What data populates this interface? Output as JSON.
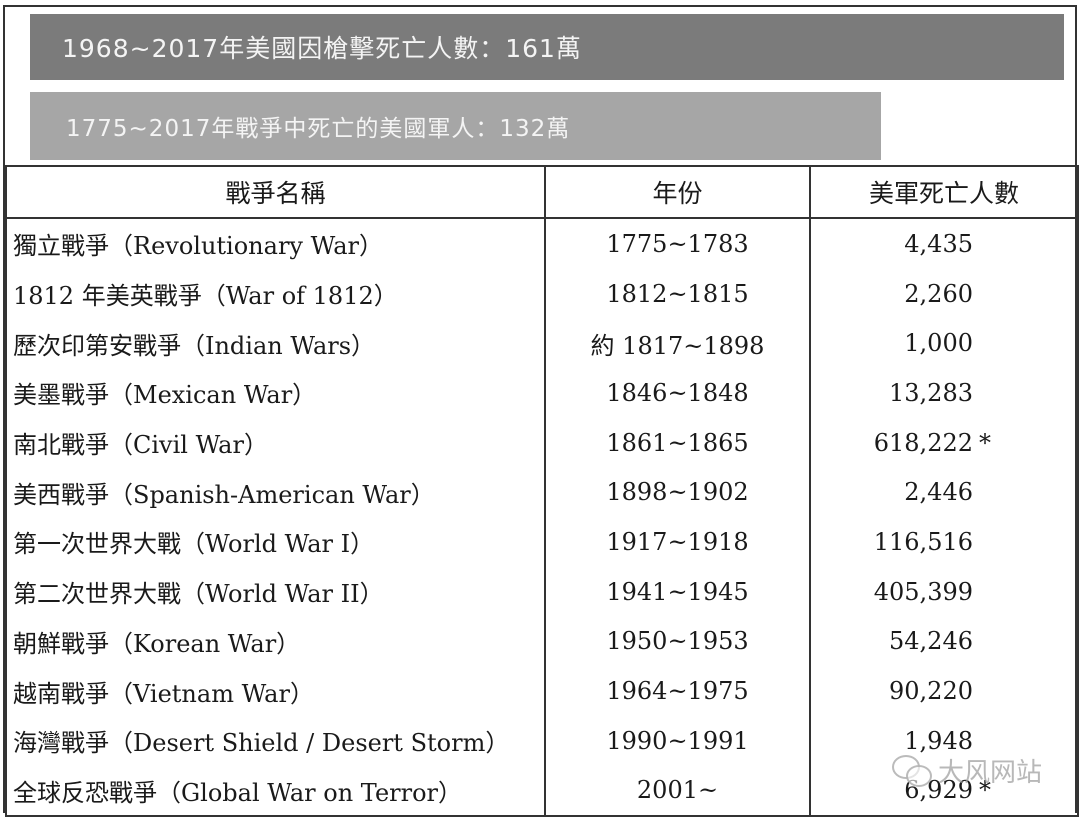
{
  "banners": {
    "gun_deaths": "1968~2017年美國因槍擊死亡人數：161萬",
    "war_deaths": "1775~2017年戰爭中死亡的美國軍人：132萬"
  },
  "table": {
    "headers": [
      "戰爭名稱",
      "年份",
      "美軍死亡人數"
    ],
    "rows": [
      {
        "name": "獨立戰爭（Revolutionary War）",
        "years": "1775~1783",
        "deaths": "4,435",
        "note": ""
      },
      {
        "name": "1812 年美英戰爭（War of 1812）",
        "years": "1812~1815",
        "deaths": "2,260",
        "note": ""
      },
      {
        "name": "歷次印第安戰爭（Indian Wars）",
        "years": "約 1817~1898",
        "deaths": "1,000",
        "note": ""
      },
      {
        "name": "美墨戰爭（Mexican War）",
        "years": "1846~1848",
        "deaths": "13,283",
        "note": ""
      },
      {
        "name": "南北戰爭（Civil War）",
        "years": "1861~1865",
        "deaths": "618,222",
        "note": "*"
      },
      {
        "name": "美西戰爭（Spanish-American War）",
        "years": "1898~1902",
        "deaths": "2,446",
        "note": ""
      },
      {
        "name": "第一次世界大戰（World War I）",
        "years": "1917~1918",
        "deaths": "116,516",
        "note": ""
      },
      {
        "name": "第二次世界大戰（World War II）",
        "years": "1941~1945",
        "deaths": "405,399",
        "note": ""
      },
      {
        "name": "朝鮮戰爭（Korean War）",
        "years": "1950~1953",
        "deaths": "54,246",
        "note": ""
      },
      {
        "name": "越南戰爭（Vietnam War）",
        "years": "1964~1975",
        "deaths": "90,220",
        "note": ""
      },
      {
        "name": "海灣戰爭（Desert Shield / Desert Storm）",
        "years": "1990~1991",
        "deaths": "1,948",
        "note": ""
      },
      {
        "name": "全球反恐戰爭（Global War on Terror）",
        "years": "2001~",
        "deaths": "6,929",
        "note": "*"
      }
    ]
  },
  "watermark": {
    "text": "大风网站",
    "icon": "wechat-icon"
  }
}
